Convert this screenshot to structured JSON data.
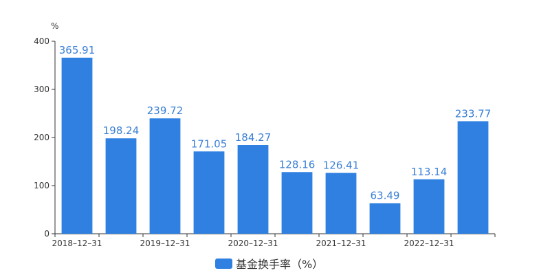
{
  "chart_data": {
    "type": "bar",
    "categories": [
      "2018-12-31",
      "",
      "2019-12-31",
      "",
      "2020-12-31",
      "",
      "2021-12-31",
      "",
      "2022-12-31",
      ""
    ],
    "x_tick_labels": [
      "2018–12–31",
      "2019–12–31",
      "2020–12–31",
      "2021–12–31",
      "2022–12–31"
    ],
    "series": [
      {
        "name": "基金换手率（%）",
        "values": [
          365.91,
          198.24,
          239.72,
          171.05,
          184.27,
          128.16,
          126.41,
          63.49,
          113.14,
          233.77
        ],
        "value_labels": [
          "365.91",
          "198.24",
          "239.72",
          "171.05",
          "184.27",
          "128.16",
          "126.41",
          "63.49",
          "113.14",
          "233.77"
        ],
        "color": "#2f80e0"
      }
    ],
    "y_unit": "%",
    "ylim": [
      0,
      400
    ],
    "y_ticks": [
      0,
      100,
      200,
      300,
      400
    ],
    "grid": false,
    "legend_position": "bottom-center",
    "label_color": "#3a7fd5",
    "axis_color": "#333333"
  }
}
